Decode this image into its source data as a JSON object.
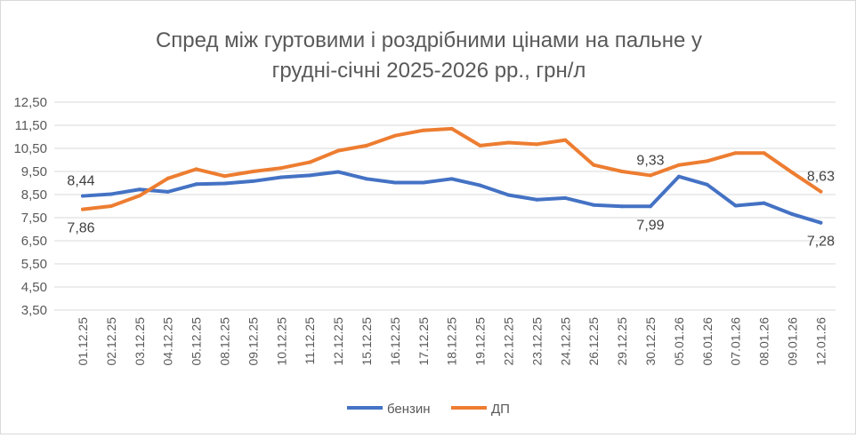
{
  "chart_data": {
    "type": "line",
    "title_lines": [
      "Спред між гуртовими і роздрібними цінами на пальне у",
      "грудні-січні 2025-2026 рр., грн/л"
    ],
    "xlabel": "",
    "ylabel": "",
    "ylim": [
      3.5,
      12.5
    ],
    "yticks": [
      "12,50",
      "11,50",
      "10,50",
      "9,50",
      "8,50",
      "7,50",
      "6,50",
      "5,50",
      "4,50",
      "3,50"
    ],
    "ytick_values": [
      12.5,
      11.5,
      10.5,
      9.5,
      8.5,
      7.5,
      6.5,
      5.5,
      4.5,
      3.5
    ],
    "grid": true,
    "legend_position": "bottom",
    "categories": [
      "01.12.25",
      "02.12.25",
      "03.12.25",
      "04.12.25",
      "05.12.25",
      "08.12.25",
      "09.12.25",
      "10.12.25",
      "11.12.25",
      "12.12.25",
      "15.12.25",
      "16.12.25",
      "17.12.25",
      "18.12.25",
      "19.12.25",
      "22.12.25",
      "23.12.25",
      "24.12.25",
      "26.12.25",
      "29.12.25",
      "30.12.25",
      "05.01.26",
      "06.01.26",
      "07.01.26",
      "08.01.26",
      "09.01.26",
      "12.01.26"
    ],
    "series": [
      {
        "name": "бензин",
        "color": "#4472C4",
        "values": [
          8.44,
          8.52,
          8.72,
          8.62,
          8.95,
          8.98,
          9.08,
          9.25,
          9.33,
          9.48,
          9.18,
          9.02,
          9.02,
          9.18,
          8.9,
          8.48,
          8.28,
          8.35,
          8.05,
          7.99,
          7.99,
          9.28,
          8.93,
          8.02,
          8.13,
          7.65,
          7.28
        ],
        "labels": [
          {
            "index": 0,
            "text": "8,44",
            "pos": "above"
          },
          {
            "index": 20,
            "text": "7,99",
            "pos": "below"
          },
          {
            "index": 26,
            "text": "7,28",
            "pos": "below"
          }
        ]
      },
      {
        "name": "ДП",
        "color": "#ED7D31",
        "values": [
          7.86,
          8.0,
          8.45,
          9.2,
          9.6,
          9.3,
          9.5,
          9.65,
          9.9,
          10.4,
          10.62,
          11.05,
          11.28,
          11.35,
          10.62,
          10.75,
          10.68,
          10.86,
          9.78,
          9.5,
          9.33,
          9.78,
          9.95,
          10.3,
          10.3,
          9.45,
          8.63
        ],
        "labels": [
          {
            "index": 0,
            "text": "7,86",
            "pos": "below"
          },
          {
            "index": 20,
            "text": "9,33",
            "pos": "above"
          },
          {
            "index": 26,
            "text": "8,63",
            "pos": "above"
          }
        ]
      }
    ]
  }
}
